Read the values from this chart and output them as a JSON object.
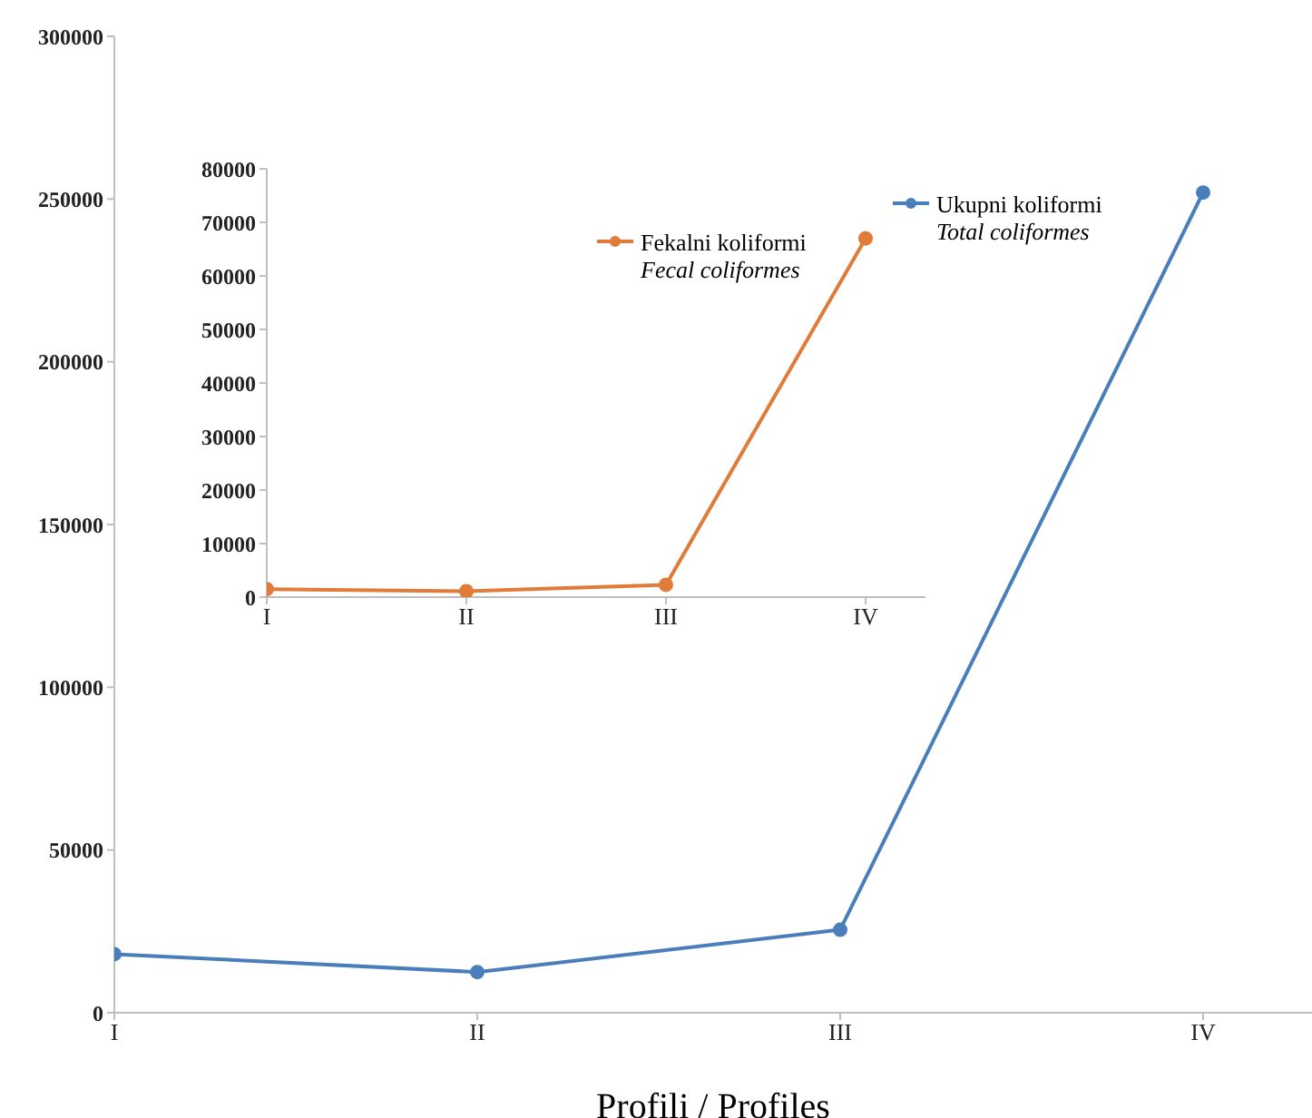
{
  "chart_data": [
    {
      "type": "line",
      "xlabel": "Profili / Profiles",
      "categories": [
        "I",
        "II",
        "III",
        "IV"
      ],
      "series": [
        {
          "name": "Ukupni koliformi\nTotal coliformes",
          "color": "#4a7ebb",
          "values": [
            18000,
            12500,
            25500,
            252000
          ]
        }
      ],
      "ylim": [
        0,
        300000
      ],
      "yticks": [
        0,
        50000,
        100000,
        150000,
        200000,
        250000,
        300000
      ],
      "grid": false,
      "legend": "top right",
      "marker": "circle"
    },
    {
      "type": "line",
      "categories": [
        "I",
        "II",
        "III",
        "IV"
      ],
      "series": [
        {
          "name": "Fekalni koliformi\nFecal coliformes",
          "color": "#e07b39",
          "values": [
            1500,
            1100,
            2300,
            67000
          ]
        }
      ],
      "ylim": [
        0,
        80000
      ],
      "yticks": [
        0,
        10000,
        20000,
        30000,
        40000,
        50000,
        60000,
        70000,
        80000
      ],
      "grid": false,
      "legend": "top right",
      "marker": "circle"
    }
  ]
}
